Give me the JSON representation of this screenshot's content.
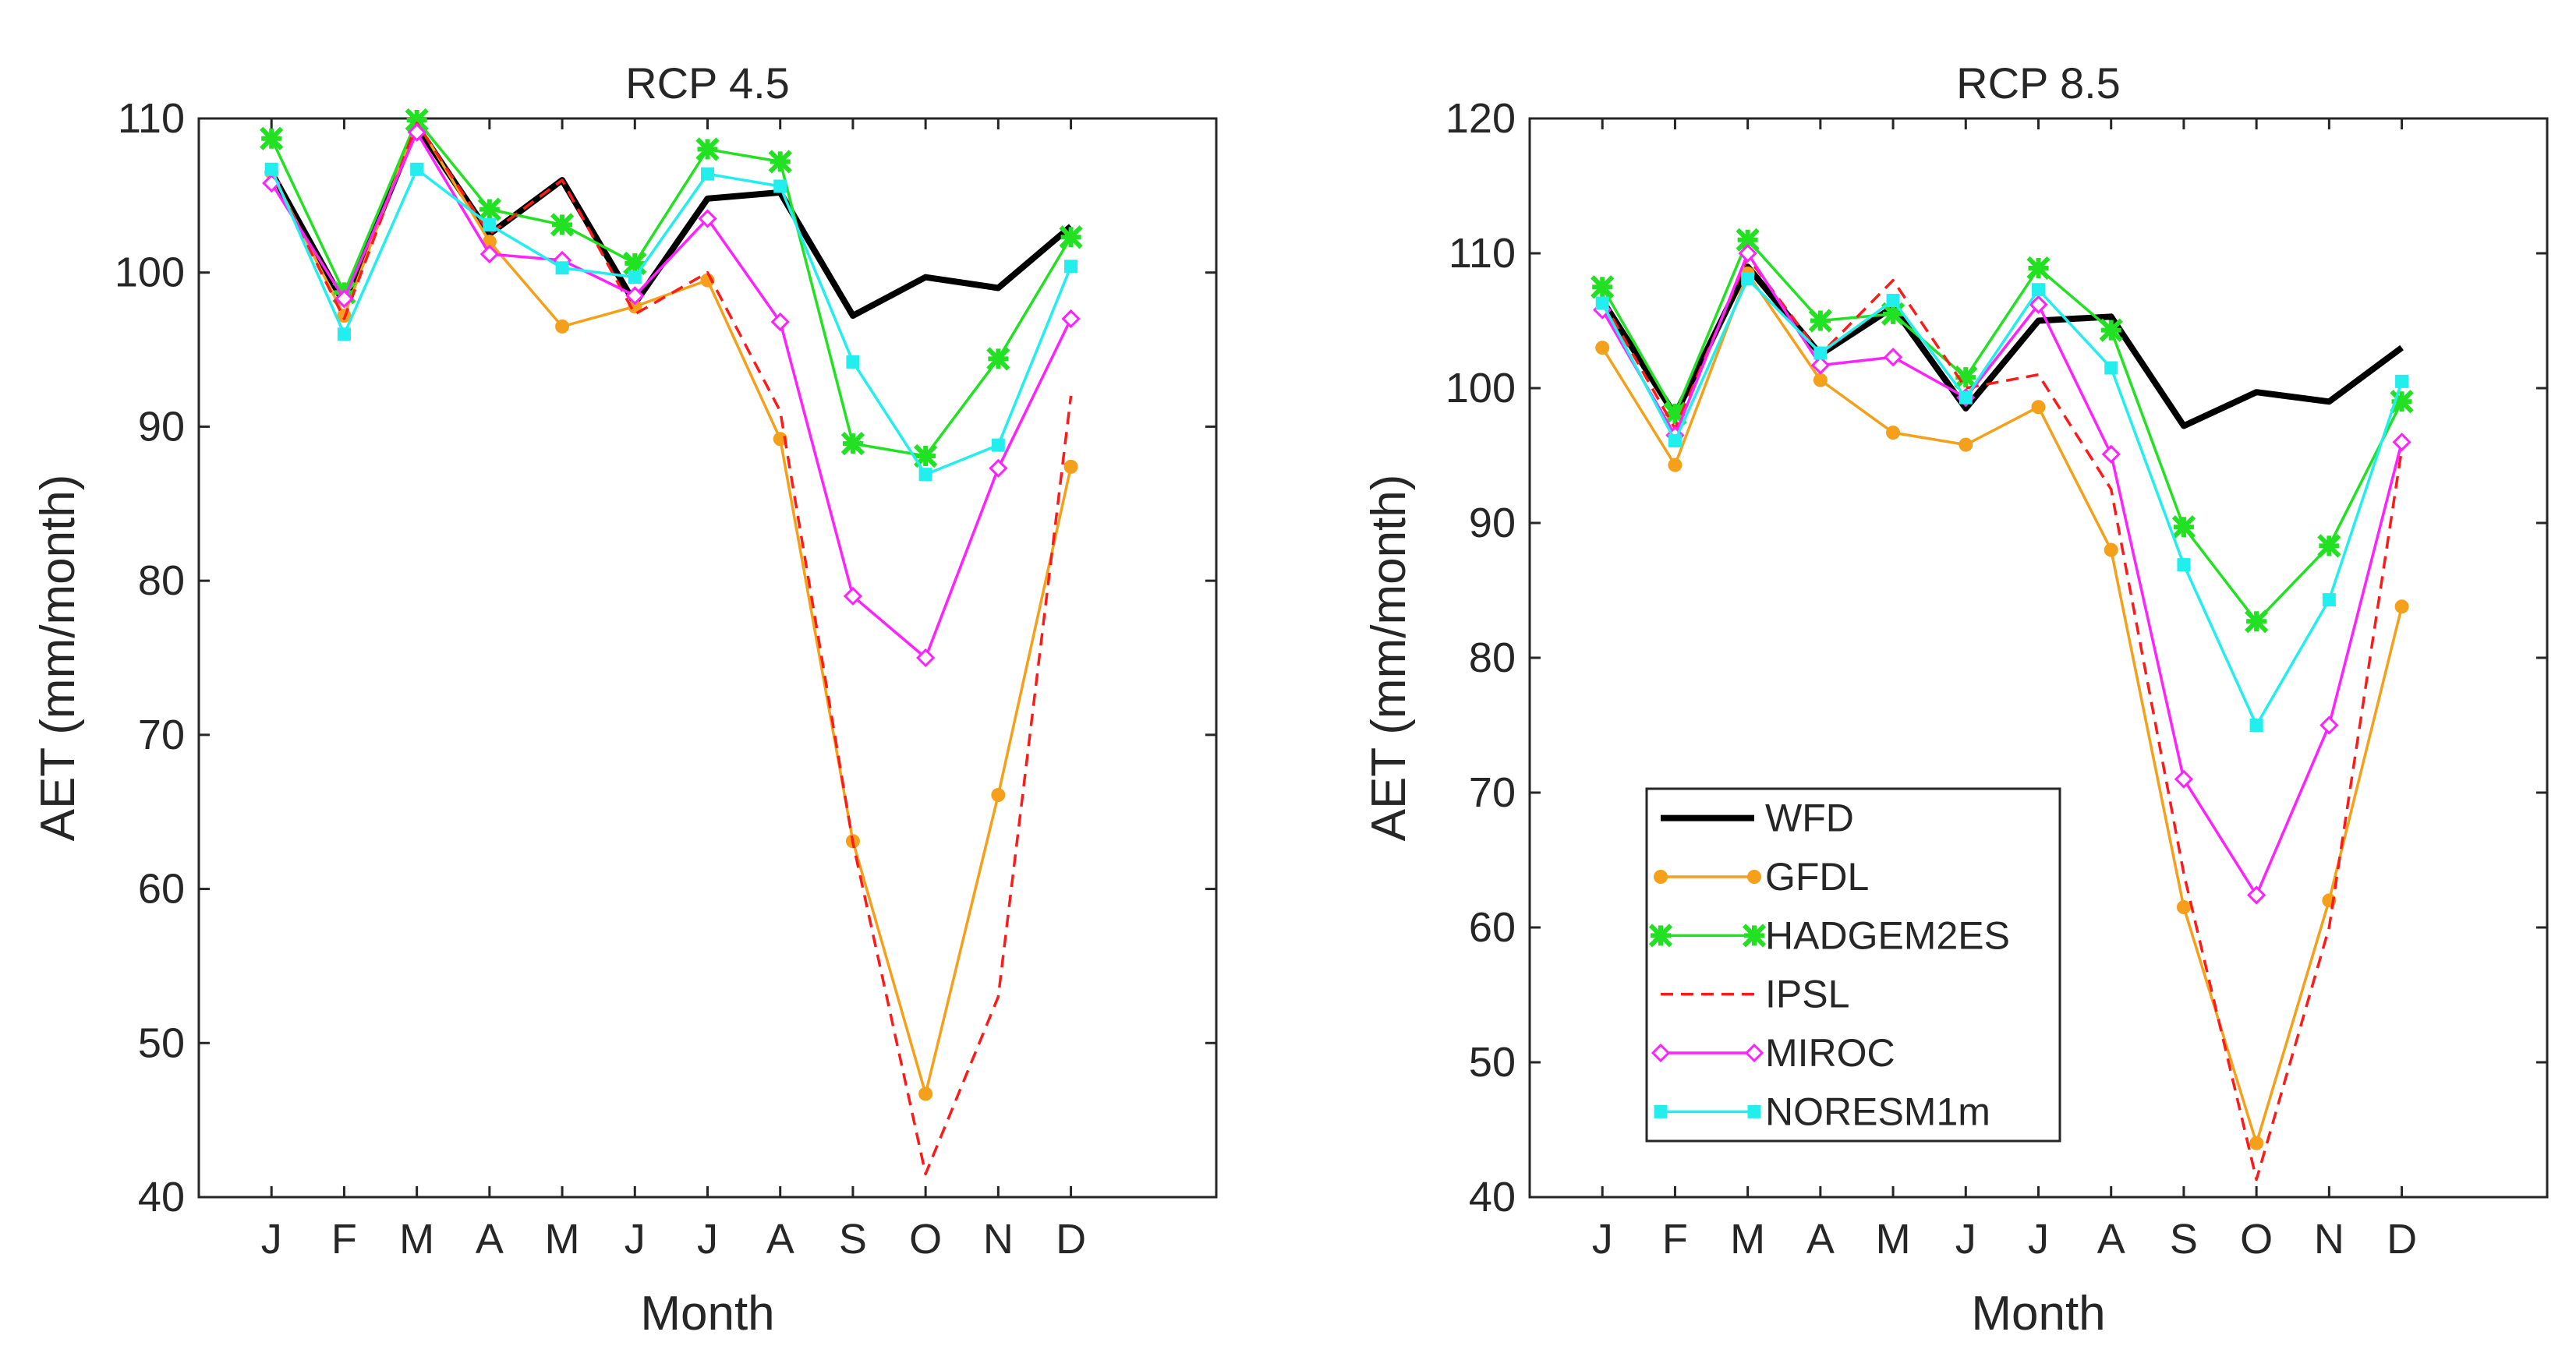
{
  "chart_data": [
    {
      "type": "line",
      "title": "RCP 4.5",
      "xlabel": "Month",
      "ylabel": "AET (mm/month)",
      "x": [
        "J",
        "F",
        "M",
        "A",
        "M",
        "J",
        "J",
        "A",
        "S",
        "O",
        "N",
        "D"
      ],
      "xlim": [
        0,
        14
      ],
      "ylim": [
        40,
        110
      ],
      "yticks": [
        40,
        50,
        60,
        70,
        80,
        90,
        100,
        110
      ],
      "grid": false,
      "legend": null,
      "series": [
        {
          "name": "WFD",
          "color": "#000000",
          "marker": "none",
          "dash": "solid",
          "values": [
            106.5,
            98.0,
            109.5,
            102.5,
            106.0,
            98.0,
            104.8,
            105.2,
            97.2,
            99.7,
            99.0,
            103.0
          ]
        },
        {
          "name": "GFDL",
          "color": "#f5a01a",
          "marker": "dot",
          "dash": "solid",
          "values": [
            106.5,
            97.2,
            109.8,
            102.0,
            96.5,
            97.8,
            99.5,
            89.2,
            63.1,
            46.7,
            66.1,
            87.4
          ]
        },
        {
          "name": "HADGEM2ES",
          "color": "#22e022",
          "marker": "star",
          "dash": "solid",
          "values": [
            108.7,
            98.7,
            109.9,
            104.1,
            103.1,
            100.6,
            108.0,
            107.2,
            88.9,
            88.1,
            94.4,
            102.3
          ]
        },
        {
          "name": "IPSL",
          "color": "#ff1a1a",
          "marker": "none",
          "dash": "dashed",
          "values": [
            106.5,
            97.0,
            109.7,
            102.5,
            106.0,
            97.3,
            100.0,
            91.0,
            63.0,
            41.5,
            53.0,
            92.0
          ]
        },
        {
          "name": "MIROC",
          "color": "#ff22ff",
          "marker": "diamond",
          "dash": "solid",
          "values": [
            105.8,
            98.3,
            109.1,
            101.2,
            100.8,
            98.5,
            103.5,
            96.8,
            79.0,
            75.0,
            87.3,
            97.0
          ]
        },
        {
          "name": "NORESM1m",
          "color": "#22eeee",
          "marker": "square",
          "dash": "solid",
          "values": [
            106.7,
            96.0,
            106.7,
            103.1,
            100.3,
            99.7,
            106.4,
            105.6,
            94.2,
            86.9,
            88.8,
            100.4
          ]
        }
      ]
    },
    {
      "type": "line",
      "title": "RCP 8.5",
      "xlabel": "Month",
      "ylabel": "AET (mm/month)",
      "x": [
        "J",
        "F",
        "M",
        "A",
        "M",
        "J",
        "J",
        "A",
        "S",
        "O",
        "N",
        "D"
      ],
      "xlim": [
        0,
        14
      ],
      "ylim": [
        40,
        120
      ],
      "yticks": [
        40,
        50,
        60,
        70,
        80,
        90,
        100,
        110,
        120
      ],
      "grid": false,
      "legend": "lower-left",
      "series": [
        {
          "name": "WFD",
          "color": "#000000",
          "marker": "none",
          "dash": "solid",
          "values": [
            106.5,
            98.0,
            109.0,
            102.5,
            106.0,
            98.5,
            105.0,
            105.3,
            97.2,
            99.7,
            99.0,
            103.0
          ]
        },
        {
          "name": "GFDL",
          "color": "#f5a01a",
          "marker": "dot",
          "dash": "solid",
          "values": [
            103.0,
            94.3,
            108.5,
            100.6,
            96.7,
            95.8,
            98.6,
            88.0,
            61.5,
            44.0,
            62.0,
            83.8
          ]
        },
        {
          "name": "HADGEM2ES",
          "color": "#22e022",
          "marker": "star",
          "dash": "solid",
          "values": [
            107.5,
            98.1,
            111.0,
            105.0,
            105.5,
            100.8,
            108.9,
            104.3,
            89.7,
            82.7,
            88.3,
            99.0
          ]
        },
        {
          "name": "IPSL",
          "color": "#ff1a1a",
          "marker": "none",
          "dash": "dashed",
          "values": [
            106.5,
            97.0,
            109.7,
            102.5,
            108.0,
            100.0,
            101.0,
            92.5,
            64.0,
            41.3,
            60.0,
            95.5
          ]
        },
        {
          "name": "MIROC",
          "color": "#ff22ff",
          "marker": "diamond",
          "dash": "solid",
          "values": [
            105.8,
            96.5,
            110.0,
            101.7,
            102.3,
            99.3,
            106.2,
            95.1,
            71.0,
            62.4,
            75.0,
            96.0
          ]
        },
        {
          "name": "NORESM1m",
          "color": "#22eeee",
          "marker": "square",
          "dash": "solid",
          "values": [
            106.3,
            96.1,
            108.1,
            102.6,
            106.5,
            99.3,
            107.3,
            101.5,
            86.9,
            75.0,
            84.3,
            100.5
          ]
        }
      ]
    }
  ]
}
